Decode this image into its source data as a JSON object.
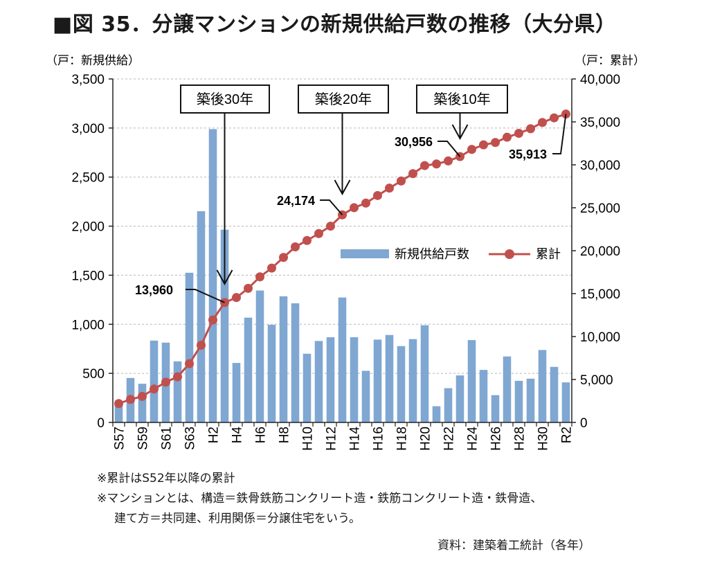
{
  "chart_data": {
    "type": "bar+line",
    "title": "■図 35．分譲マンションの新規供給戸数の推移（大分県）",
    "left_axis_unit": "（戸：新規供給）",
    "right_axis_unit": "（戸：累計）",
    "categories": [
      "S57",
      "S58",
      "S59",
      "S60",
      "S61",
      "S62",
      "S63",
      "H1",
      "H2",
      "H3",
      "H4",
      "H5",
      "H6",
      "H7",
      "H8",
      "H9",
      "H10",
      "H11",
      "H12",
      "H13",
      "H14",
      "H15",
      "H16",
      "H17",
      "H18",
      "H19",
      "H20",
      "H21",
      "H22",
      "H23",
      "H24",
      "H25",
      "H26",
      "H27",
      "H28",
      "H29",
      "H30",
      "R1",
      "R2"
    ],
    "tick_labels": [
      "S57",
      "S59",
      "S61",
      "S63",
      "H2",
      "H4",
      "H6",
      "H8",
      "H10",
      "H12",
      "H14",
      "H16",
      "H18",
      "H20",
      "H22",
      "H24",
      "H26",
      "H28",
      "H30",
      "R2"
    ],
    "series": [
      {
        "name": "新規供給戸数",
        "type": "bar",
        "axis": "left",
        "color": "#7fa7d2",
        "values": [
          200,
          453,
          394,
          834,
          813,
          622,
          1525,
          2152,
          2989,
          1964,
          606,
          1068,
          1344,
          995,
          1285,
          1214,
          700,
          830,
          868,
          1273,
          868,
          526,
          844,
          891,
          778,
          849,
          990,
          165,
          349,
          479,
          839,
          535,
          278,
          672,
          424,
          446,
          738,
          566,
          408
        ]
      },
      {
        "name": "累計",
        "type": "line",
        "axis": "right",
        "color": "#c0504d",
        "values": [
          2197,
          2680,
          3034,
          3888,
          4692,
          5312,
          6841,
          8990,
          11936,
          13960,
          14543,
          15614,
          16958,
          17972,
          19211,
          20443,
          21191,
          21996,
          22857,
          24174,
          25006,
          25541,
          26425,
          27284,
          28116,
          28974,
          29913,
          30101,
          30450,
          30956,
          31791,
          32326,
          32596,
          33213,
          33669,
          34205,
          34930,
          35467,
          35913
        ]
      }
    ],
    "left_axis": {
      "ylim": [
        0,
        3500
      ],
      "ticks": [
        "0",
        "500",
        "1,000",
        "1,500",
        "2,000",
        "2,500",
        "3,000",
        "3,500"
      ]
    },
    "right_axis": {
      "ylim": [
        0,
        40000
      ],
      "ticks": [
        "0",
        "5,000",
        "10,000",
        "15,000",
        "20,000",
        "25,000",
        "30,000",
        "35,000",
        "40,000"
      ]
    },
    "grid": "horizontal dashed (left axis)",
    "legend": {
      "placement": "center-right",
      "entries": [
        "新規供給戸数",
        "累計"
      ]
    },
    "annotations": [
      {
        "box": "築後30年",
        "category": "H3",
        "value_label": "13,960"
      },
      {
        "box": "築後20年",
        "category": "H13",
        "value_label": "24,174"
      },
      {
        "box": "築後10年",
        "category": "H23",
        "value_label": "30,956"
      },
      {
        "box": "",
        "category": "R2",
        "value_label": "35,913"
      }
    ]
  },
  "notes": {
    "note1": "※累計はS52年以降の累計",
    "note2": "※マンションとは、構造＝鉄骨鉄筋コンクリート造・鉄筋コンクリート造・鉄骨造、",
    "note3": "建て方＝共同建、利用関係＝分譲住宅をいう。",
    "source": "資料：建築着工統計（各年）"
  }
}
